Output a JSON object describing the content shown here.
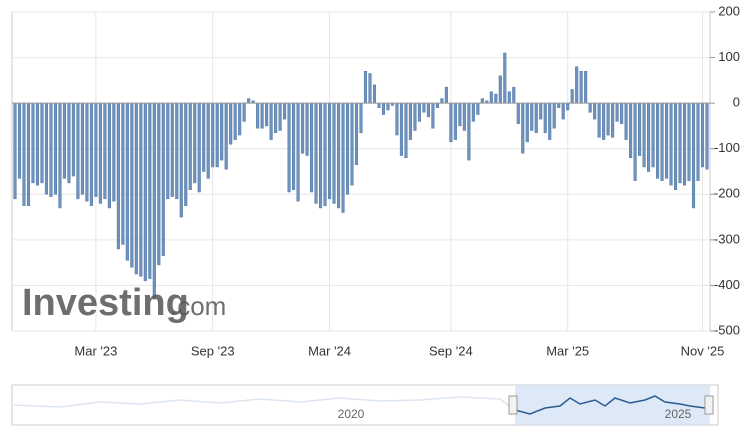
{
  "chart_data": {
    "type": "bar",
    "categories": [
      null,
      null,
      null,
      null,
      null,
      null,
      null,
      null,
      null,
      null,
      null,
      null,
      null,
      null,
      null,
      null,
      null,
      null,
      "Mar '23",
      null,
      null,
      null,
      null,
      null,
      null,
      null,
      null,
      null,
      null,
      null,
      null,
      null,
      null,
      null,
      null,
      null,
      null,
      null,
      null,
      null,
      null,
      null,
      null,
      null,
      "Sep '23",
      null,
      null,
      null,
      null,
      null,
      null,
      null,
      null,
      null,
      null,
      null,
      null,
      null,
      null,
      null,
      null,
      null,
      null,
      null,
      null,
      null,
      null,
      null,
      null,
      null,
      "Mar '24",
      null,
      null,
      null,
      null,
      null,
      null,
      null,
      null,
      null,
      null,
      null,
      null,
      null,
      null,
      null,
      null,
      null,
      null,
      null,
      null,
      null,
      null,
      null,
      null,
      null,
      null,
      "Sep '24",
      null,
      null,
      null,
      null,
      null,
      null,
      null,
      null,
      null,
      null,
      null,
      null,
      null,
      null,
      null,
      null,
      null,
      null,
      null,
      null,
      null,
      null,
      null,
      null,
      null,
      "Mar '25",
      null,
      null,
      null,
      null,
      null,
      null,
      null,
      null,
      null,
      null,
      null,
      null,
      null,
      null,
      null,
      null,
      null,
      null,
      null,
      null,
      null,
      null,
      null,
      null,
      null,
      null,
      null,
      null,
      null,
      "Nov '25",
      null
    ],
    "values": [
      -210,
      -165,
      -225,
      -225,
      -175,
      -180,
      -175,
      -200,
      -205,
      -200,
      -230,
      -165,
      -175,
      -160,
      -210,
      -200,
      -215,
      -225,
      -205,
      -220,
      -210,
      -230,
      -215,
      -320,
      -310,
      -345,
      -360,
      -375,
      -380,
      -390,
      -385,
      -430,
      -355,
      -335,
      -210,
      -205,
      -210,
      -250,
      -225,
      -190,
      -175,
      -195,
      -150,
      -165,
      -140,
      -140,
      -125,
      -145,
      -90,
      -80,
      -70,
      -40,
      10,
      5,
      -55,
      -55,
      -50,
      -80,
      -65,
      -60,
      -35,
      -195,
      -190,
      -215,
      -110,
      -115,
      -195,
      -220,
      -230,
      -225,
      -210,
      -220,
      -230,
      -240,
      -200,
      -180,
      -135,
      -65,
      70,
      65,
      40,
      -10,
      -25,
      -15,
      -5,
      -70,
      -115,
      -120,
      -80,
      -60,
      -40,
      -20,
      -30,
      -55,
      -10,
      10,
      35,
      -85,
      -80,
      -50,
      -60,
      -125,
      -40,
      -25,
      10,
      5,
      25,
      20,
      60,
      110,
      25,
      35,
      -45,
      -110,
      -85,
      -60,
      -65,
      -35,
      -65,
      -80,
      -55,
      -10,
      -35,
      -15,
      30,
      80,
      70,
      70,
      -20,
      -35,
      -75,
      -80,
      -70,
      -75,
      -40,
      -45,
      -80,
      -120,
      -170,
      -115,
      -140,
      -150,
      -140,
      -165,
      -170,
      -165,
      -180,
      -190,
      -175,
      -180,
      -170,
      -230,
      -170,
      -140,
      -145
    ],
    "color": "#6f93bd",
    "ylim": [
      -500,
      200
    ],
    "yticks": [
      -500,
      -400,
      -300,
      -200,
      -100,
      0,
      100,
      200
    ],
    "grid": true,
    "watermark": {
      "brand": "Investing",
      "suffix": ".com"
    },
    "navigator": {
      "labels": [
        "2020",
        "2025"
      ]
    }
  }
}
